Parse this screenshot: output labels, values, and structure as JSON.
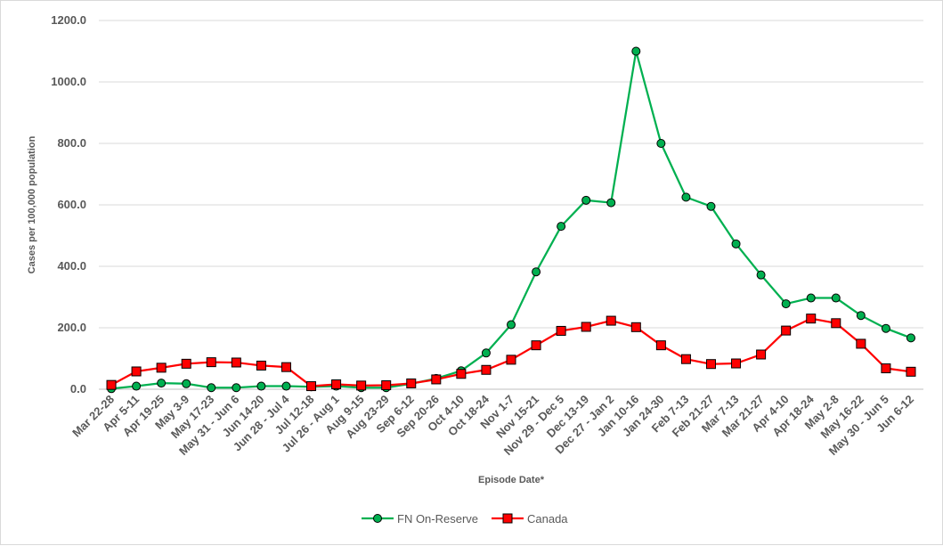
{
  "chart_data": {
    "type": "line",
    "title": "",
    "xlabel": "Episode Date*",
    "ylabel": "Cases per 100,000 population",
    "ylim": [
      0,
      1200
    ],
    "yticks": [
      "0.0",
      "200.0",
      "400.0",
      "600.0",
      "800.0",
      "1000.0",
      "1200.0"
    ],
    "grid": "horizontal",
    "legend_position": "bottom",
    "categories": [
      "Mar 22-28",
      "Apr 5-11",
      "Apr 19-25",
      "May 3-9",
      "May 17-23",
      "May 31 - Jun 6",
      "Jun 14-20",
      "Jun 28 - Jul 4",
      "Jul 12-18",
      "Jul 26 - Aug 1",
      "Aug 9-15",
      "Aug 23-29",
      "Sep 6-12",
      "Sep 20-26",
      "Oct 4-10",
      "Oct 18-24",
      "Nov 1-7",
      "Nov 15-21",
      "Nov 29 - Dec 5",
      "Dec 13-19",
      "Dec 27 - Jan 2",
      "Jan 10-16",
      "Jan 24-30",
      "Feb 7-13",
      "Feb 21-27",
      "Mar 7-13",
      "Mar 21-27",
      "Apr 4-10",
      "Apr 18-24",
      "May 2-8",
      "May 16-22",
      "May 30 - Jun 5",
      "Jun 6-12"
    ],
    "series": [
      {
        "name": "FN On-Reserve",
        "color": "#00b050",
        "marker": "circle",
        "values": [
          2,
          10,
          20,
          18,
          5,
          5,
          10,
          10,
          8,
          10,
          5,
          5,
          18,
          35,
          60,
          118,
          210,
          382,
          530,
          615,
          607,
          1100,
          800,
          625,
          595,
          473,
          372,
          278,
          297,
          297,
          240,
          198,
          167
        ]
      },
      {
        "name": "Canada",
        "color": "#ff0000",
        "marker": "square",
        "values": [
          14,
          58,
          70,
          83,
          88,
          87,
          77,
          72,
          10,
          16,
          12,
          13,
          19,
          32,
          50,
          63,
          96,
          143,
          190,
          203,
          223,
          202,
          143,
          98,
          82,
          84,
          113,
          191,
          230,
          215,
          148,
          68,
          57
        ]
      }
    ]
  }
}
